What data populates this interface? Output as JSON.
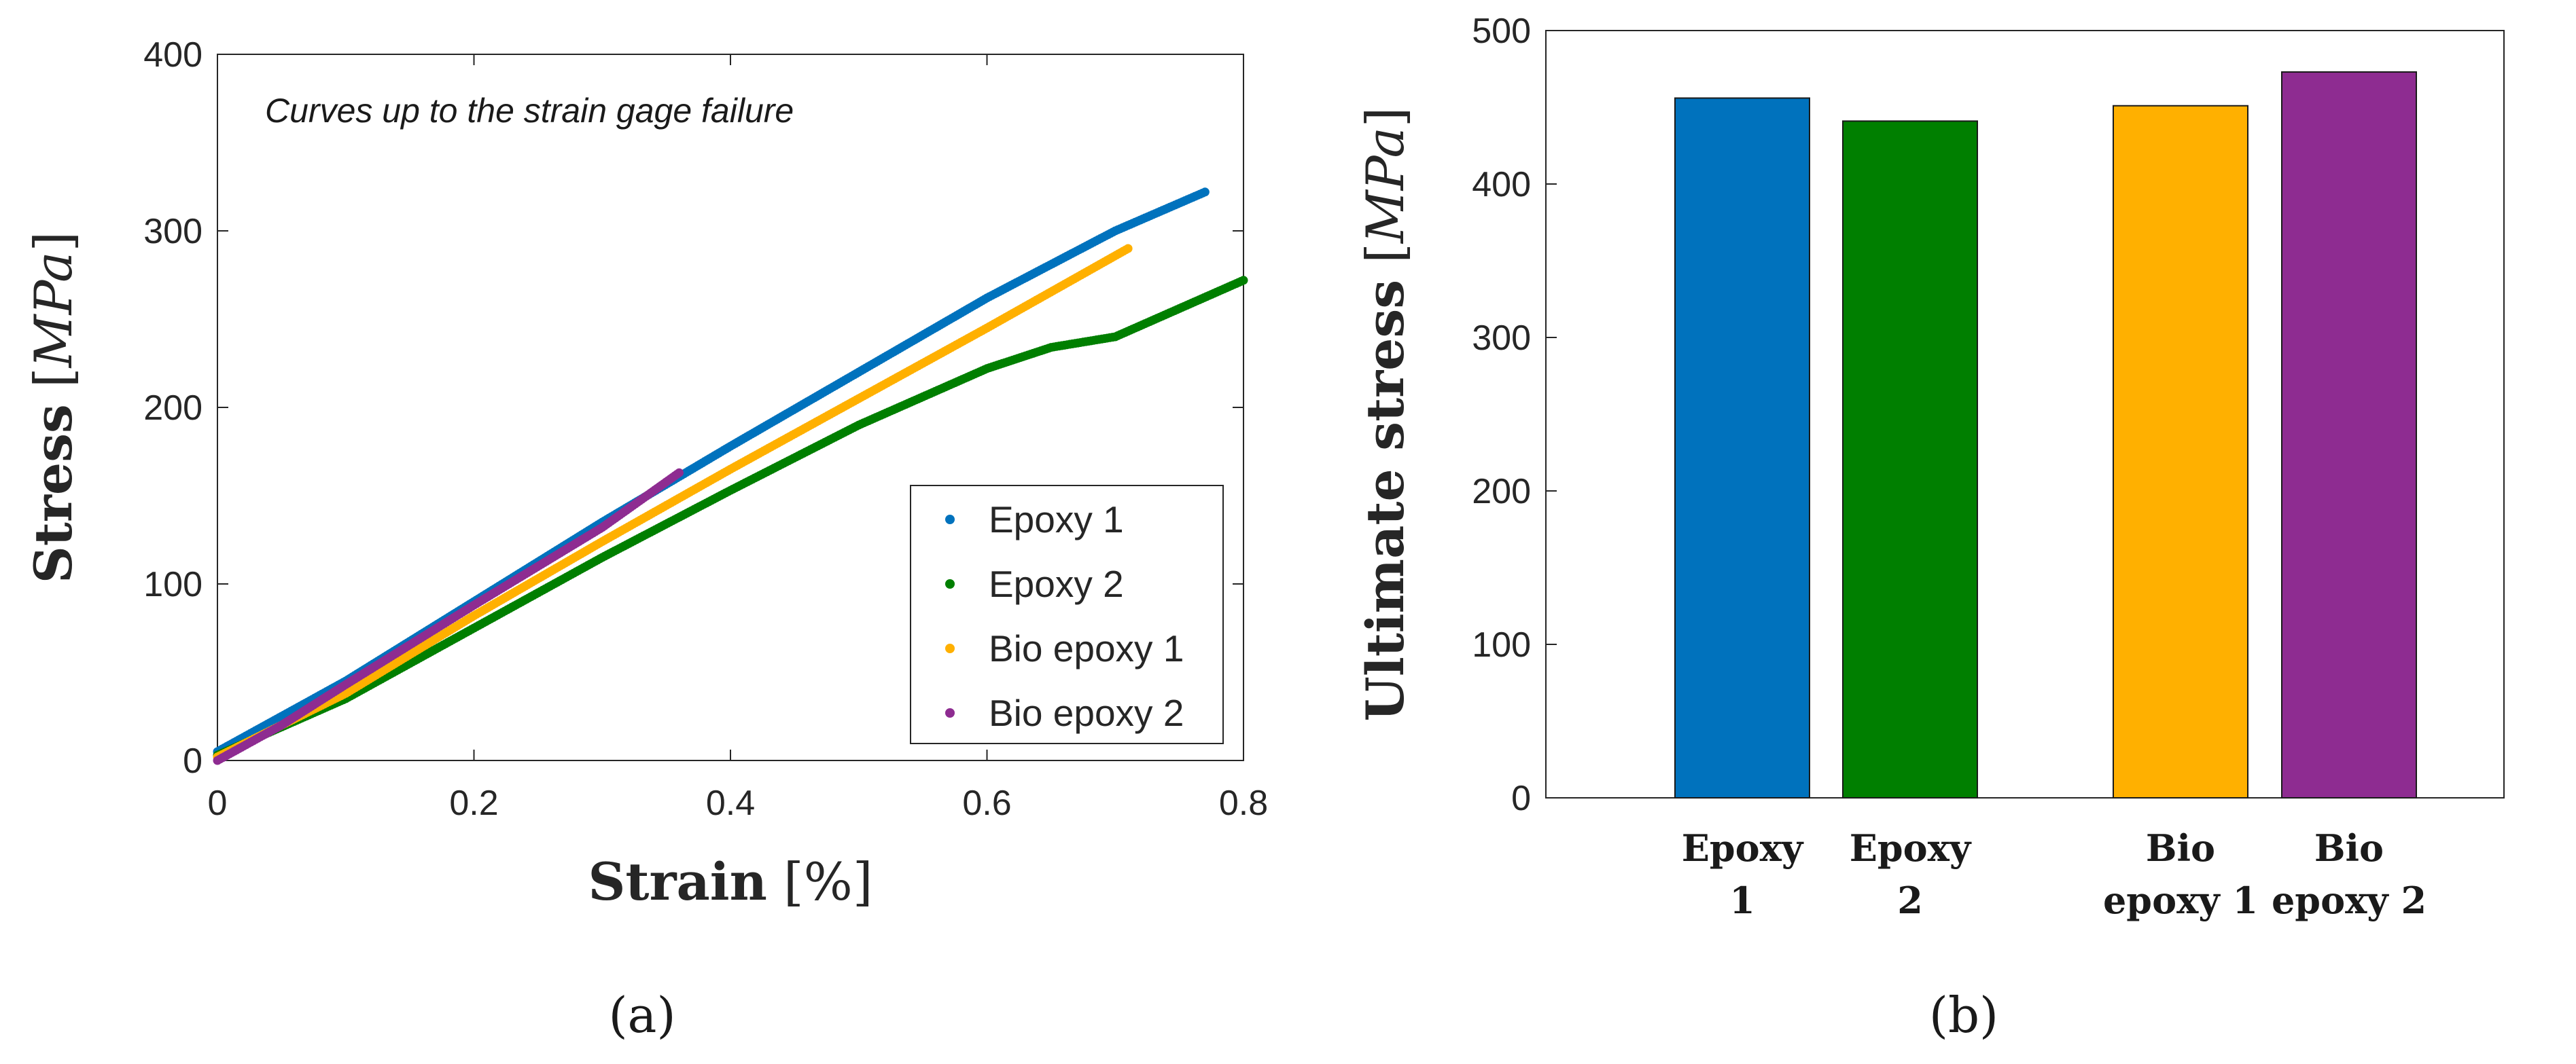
{
  "chart_data": [
    {
      "type": "scatter",
      "title": "",
      "panel_label": "(a)",
      "annotation": "Curves up to the strain gage failure",
      "xlabel": "Strain [%]",
      "ylabel": "Stress [MPa]",
      "xlim": [
        0,
        0.8
      ],
      "ylim": [
        0,
        400
      ],
      "xticks": [
        0,
        0.2,
        0.4,
        0.6,
        0.8
      ],
      "xtick_labels": [
        "0",
        "0.2",
        "0.4",
        "0.6",
        "0.8"
      ],
      "yticks": [
        0,
        100,
        200,
        300,
        400
      ],
      "ytick_labels": [
        "0",
        "100",
        "200",
        "300",
        "400"
      ],
      "legend_position": "lower-right",
      "series": [
        {
          "name": "Epoxy 1",
          "color": "#0072BD",
          "x": [
            0,
            0.1,
            0.2,
            0.3,
            0.4,
            0.5,
            0.6,
            0.7,
            0.77
          ],
          "y": [
            5,
            45,
            90,
            135,
            178,
            220,
            262,
            300,
            322
          ]
        },
        {
          "name": "Epoxy 2",
          "color": "#007F00",
          "x": [
            0,
            0.1,
            0.2,
            0.3,
            0.4,
            0.5,
            0.6,
            0.65,
            0.7,
            0.8
          ],
          "y": [
            3,
            35,
            75,
            115,
            153,
            190,
            222,
            234,
            240,
            272
          ]
        },
        {
          "name": "Bio epoxy 1",
          "color": "#FFB000",
          "x": [
            0,
            0.1,
            0.2,
            0.3,
            0.4,
            0.5,
            0.6,
            0.71
          ],
          "y": [
            2,
            38,
            82,
            124,
            165,
            205,
            245,
            290
          ]
        },
        {
          "name": "Bio epoxy 2",
          "color": "#8E2C91",
          "x": [
            0,
            0.05,
            0.1,
            0.2,
            0.3,
            0.36
          ],
          "y": [
            0,
            20,
            43,
            88,
            132,
            163
          ]
        }
      ]
    },
    {
      "type": "bar",
      "title": "",
      "panel_label": "(b)",
      "xlabel": "",
      "ylabel": "Ultimate stress [MPa]",
      "ylim": [
        0,
        500
      ],
      "yticks": [
        0,
        100,
        200,
        300,
        400,
        500
      ],
      "ytick_labels": [
        "0",
        "100",
        "200",
        "300",
        "400",
        "500"
      ],
      "categories": [
        {
          "line1": "Epoxy",
          "line2": "1"
        },
        {
          "line1": "Epoxy",
          "line2": "2"
        },
        {
          "line1": "Bio",
          "line2": "epoxy 1"
        },
        {
          "line1": "Bio",
          "line2": "epoxy 2"
        }
      ],
      "values": [
        456,
        441,
        451,
        473
      ],
      "colors": [
        "#0072BD",
        "#007F00",
        "#FFB000",
        "#8E2C91"
      ]
    }
  ]
}
